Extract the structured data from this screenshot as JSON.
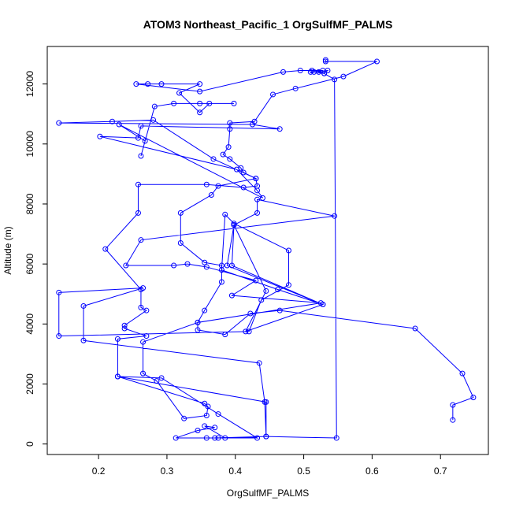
{
  "chart_data": {
    "type": "line",
    "title": "ATOM3 Northeast_Pacific_1 OrgSulfMF_PALMS",
    "xlabel": "OrgSulfMF_PALMS",
    "ylabel": "Altitude (m)",
    "xlim": [
      0.125,
      0.77
    ],
    "ylim": [
      -350,
      13250
    ],
    "xticks": [
      0.2,
      0.3,
      0.4,
      0.5,
      0.6,
      0.7
    ],
    "xtick_labels": [
      "0.2",
      "0.3",
      "0.4",
      "0.5",
      "0.6",
      "0.7"
    ],
    "yticks": [
      0,
      2000,
      4000,
      6000,
      8000,
      10000,
      12000
    ],
    "ytick_labels": [
      "0",
      "2000",
      "4000",
      "6000",
      "8000",
      "10000",
      "12000"
    ],
    "grid": false,
    "series": [
      {
        "color": "#0000ff",
        "marker": "open-circle",
        "points": [
          [
            0.532,
            12800
          ],
          [
            0.532,
            12750
          ],
          [
            0.607,
            12750
          ],
          [
            0.558,
            12250
          ],
          [
            0.488,
            11850
          ],
          [
            0.455,
            11650
          ],
          [
            0.428,
            10750
          ],
          [
            0.392,
            10700
          ],
          [
            0.392,
            10500
          ],
          [
            0.39,
            9900
          ],
          [
            0.382,
            9650
          ],
          [
            0.392,
            9500
          ],
          [
            0.408,
            9200
          ],
          [
            0.412,
            9050
          ],
          [
            0.43,
            8850
          ],
          [
            0.432,
            8600
          ],
          [
            0.412,
            8550
          ],
          [
            0.358,
            8650
          ],
          [
            0.258,
            8650
          ],
          [
            0.258,
            7700
          ],
          [
            0.21,
            6500
          ],
          [
            0.262,
            5150
          ],
          [
            0.262,
            4550
          ],
          [
            0.27,
            4450
          ],
          [
            0.238,
            3950
          ],
          [
            0.238,
            3850
          ],
          [
            0.27,
            3600
          ],
          [
            0.228,
            3500
          ],
          [
            0.228,
            2250
          ],
          [
            0.355,
            1350
          ],
          [
            0.36,
            1250
          ],
          [
            0.358,
            950
          ],
          [
            0.325,
            850
          ],
          [
            0.285,
            2100
          ],
          [
            0.265,
            2350
          ],
          [
            0.265,
            3400
          ],
          [
            0.345,
            4050
          ],
          [
            0.355,
            4450
          ],
          [
            0.38,
            5400
          ],
          [
            0.38,
            5950
          ],
          [
            0.355,
            6050
          ],
          [
            0.32,
            6700
          ],
          [
            0.32,
            7700
          ],
          [
            0.365,
            8300
          ],
          [
            0.375,
            8600
          ],
          [
            0.43,
            8850
          ],
          [
            0.368,
            9500
          ],
          [
            0.28,
            10800
          ],
          [
            0.22,
            10750
          ],
          [
            0.142,
            10700
          ],
          [
            0.425,
            10650
          ],
          [
            0.465,
            10500
          ],
          [
            0.262,
            10600
          ],
          [
            0.258,
            10200
          ],
          [
            0.202,
            10250
          ],
          [
            0.402,
            9150
          ],
          [
            0.432,
            8450
          ],
          [
            0.44,
            8200
          ],
          [
            0.23,
            10650
          ],
          [
            0.268,
            10100
          ],
          [
            0.262,
            9600
          ],
          [
            0.282,
            11250
          ],
          [
            0.31,
            11350
          ],
          [
            0.348,
            11350
          ],
          [
            0.398,
            11350
          ],
          [
            0.362,
            11350
          ],
          [
            0.348,
            11050
          ],
          [
            0.318,
            11700
          ],
          [
            0.348,
            12000
          ],
          [
            0.292,
            12000
          ],
          [
            0.272,
            12000
          ],
          [
            0.255,
            12000
          ],
          [
            0.348,
            11750
          ],
          [
            0.47,
            12400
          ],
          [
            0.495,
            12450
          ],
          [
            0.512,
            12450
          ],
          [
            0.528,
            12450
          ],
          [
            0.522,
            12400
          ],
          [
            0.53,
            12350
          ],
          [
            0.515,
            12400
          ],
          [
            0.51,
            12400
          ],
          [
            0.535,
            12450
          ],
          [
            0.53,
            12350
          ],
          [
            0.545,
            12150
          ],
          [
            0.548,
            200
          ],
          [
            0.445,
            250
          ],
          [
            0.37,
            200
          ],
          [
            0.358,
            200
          ],
          [
            0.375,
            200
          ],
          [
            0.313,
            200
          ],
          [
            0.345,
            450
          ],
          [
            0.37,
            550
          ],
          [
            0.355,
            600
          ],
          [
            0.385,
            200
          ],
          [
            0.432,
            200
          ],
          [
            0.375,
            1000
          ],
          [
            0.292,
            2200
          ],
          [
            0.228,
            2250
          ],
          [
            0.445,
            1400
          ],
          [
            0.445,
            250
          ],
          [
            0.443,
            1400
          ],
          [
            0.435,
            2700
          ],
          [
            0.178,
            3450
          ],
          [
            0.178,
            4600
          ],
          [
            0.265,
            5200
          ],
          [
            0.142,
            5050
          ],
          [
            0.142,
            3600
          ],
          [
            0.42,
            3750
          ],
          [
            0.438,
            4800
          ],
          [
            0.478,
            5300
          ],
          [
            0.478,
            6450
          ],
          [
            0.398,
            7350
          ],
          [
            0.385,
            7650
          ],
          [
            0.38,
            5800
          ],
          [
            0.462,
            5150
          ],
          [
            0.528,
            4650
          ],
          [
            0.388,
            5950
          ],
          [
            0.398,
            7300
          ],
          [
            0.445,
            5100
          ],
          [
            0.415,
            3750
          ],
          [
            0.528,
            4650
          ],
          [
            0.395,
            5950
          ],
          [
            0.398,
            7300
          ],
          [
            0.432,
            7700
          ],
          [
            0.432,
            8150
          ],
          [
            0.545,
            7600
          ],
          [
            0.262,
            6800
          ],
          [
            0.24,
            5950
          ],
          [
            0.31,
            5950
          ],
          [
            0.33,
            6000
          ],
          [
            0.358,
            5900
          ],
          [
            0.43,
            5450
          ],
          [
            0.395,
            4950
          ],
          [
            0.525,
            4700
          ],
          [
            0.345,
            4050
          ],
          [
            0.345,
            3800
          ],
          [
            0.385,
            3650
          ],
          [
            0.422,
            4350
          ],
          [
            0.465,
            4450
          ],
          [
            0.663,
            3850
          ],
          [
            0.732,
            2350
          ],
          [
            0.748,
            1550
          ],
          [
            0.718,
            1300
          ],
          [
            0.718,
            800
          ]
        ]
      }
    ]
  }
}
